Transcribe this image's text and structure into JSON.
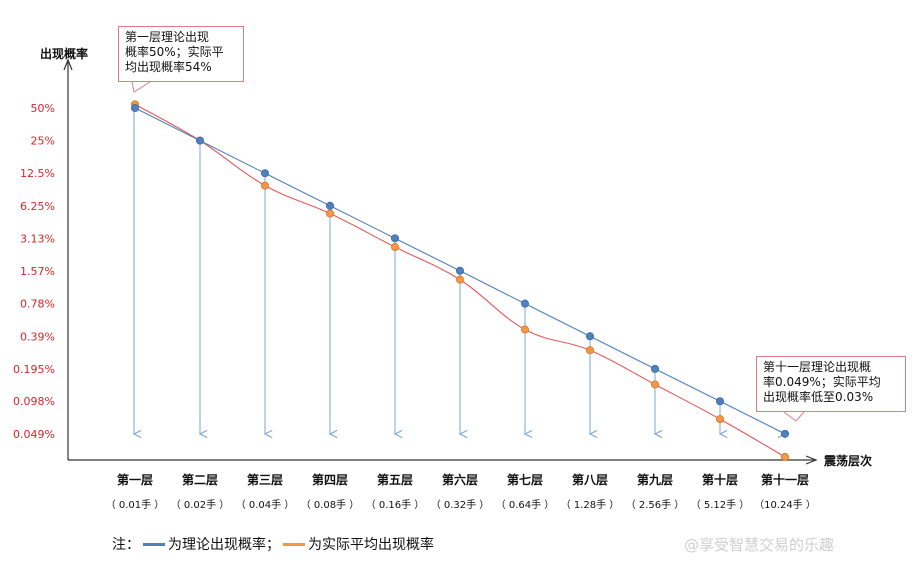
{
  "chart_data": {
    "type": "line",
    "ylabel": "出现概率",
    "xlabel": "震荡层次",
    "categories": [
      "第一层",
      "第二层",
      "第三层",
      "第四层",
      "第五层",
      "第六层",
      "第七层",
      "第八层",
      "第九层",
      "第十层",
      "第十一层"
    ],
    "category_sublabels": [
      "（ 0.01手 ）",
      "（ 0.02手 ）",
      "（ 0.04手 ）",
      "（ 0.08手 ）",
      "（ 0.16手 ）",
      "（ 0.32手 ）",
      "（ 0.64手 ）",
      "（ 1.28手 ）",
      "（ 2.56手 ）",
      "（ 5.12手 ）",
      "（10.24手 ）"
    ],
    "y_scale": "log2",
    "y_ticks": [
      50,
      25,
      12.5,
      6.25,
      3.13,
      1.57,
      0.78,
      0.39,
      0.195,
      0.098,
      0.049
    ],
    "y_tick_labels": [
      "50%",
      "25%",
      "12.5%",
      "6.25%",
      "3.13%",
      "1.57%",
      "0.78%",
      "0.39%",
      "0.195%",
      "0.098%",
      "0.049%"
    ],
    "series": [
      {
        "name": "为理论出现概率",
        "color": "#4f81bd",
        "values": [
          50,
          25,
          12.5,
          6.25,
          3.13,
          1.57,
          0.78,
          0.39,
          0.195,
          0.098,
          0.049
        ]
      },
      {
        "name": "为实际平均出现概率",
        "color": "#f79646",
        "values": [
          54,
          25,
          9.6,
          5.3,
          2.6,
          1.3,
          0.45,
          0.29,
          0.14,
          0.067,
          0.03
        ]
      }
    ],
    "annotations": [
      {
        "text_lines": [
          "第一层理论出现",
          "概率50%；实际平",
          "均出现概率54%"
        ]
      },
      {
        "text_lines": [
          "第十一层理论出现概",
          "率0.049%；实际平均",
          "出现概率低至0.03%"
        ]
      }
    ]
  },
  "legend": {
    "prefix": "注：",
    "item1": "为理论出现概率；",
    "item2": "为实际平均出现概率"
  },
  "watermark": "@享受智慧交易的乐趣"
}
